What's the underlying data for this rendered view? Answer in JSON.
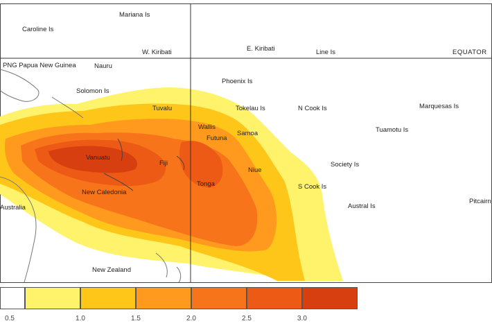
{
  "map": {
    "labels": {
      "mariana": "Mariana Is",
      "caroline": "Caroline Is",
      "w_kiribati": "W. Kiribati",
      "e_kiribati": "E. Kiribati",
      "line": "Line Is",
      "equator": "EQUATOR",
      "png": "PNG Papua New Guinea",
      "nauru": "Nauru",
      "solomon": "Solomon Is",
      "tuvalu": "Tuvalu",
      "tokelau": "Tokelau Is",
      "n_cook": "N Cook Is",
      "marquesas": "Marquesas Is",
      "tuamotu": "Tuamotu Is",
      "wallis": "Wallis",
      "futuna": "Futuna",
      "samoa": "Samoa",
      "vanuatu": "Vanuatu",
      "fiji": "Fiji",
      "new_caledonia": "New Caledonia",
      "niue": "Niue",
      "tonga": "Tonga",
      "society": "Society Is",
      "s_cook": "S Cook Is",
      "austral": "Austral Is",
      "pitcairn": "Pitcairn",
      "australia": "Australia",
      "new_zealand": "New Zealand",
      "phoenix": "Phoenix Is"
    }
  },
  "legend": {
    "levels": [
      {
        "from": 0.0,
        "color": "#ffffff"
      },
      {
        "from": 0.5,
        "color": "#fff36b"
      },
      {
        "from": 1.0,
        "color": "#ffc61a"
      },
      {
        "from": 1.5,
        "color": "#ff9a1f"
      },
      {
        "from": 2.0,
        "color": "#f7741a"
      },
      {
        "from": 2.5,
        "color": "#ec5a15"
      },
      {
        "from": 3.0,
        "color": "#d73f10"
      }
    ],
    "tick_labels": [
      "0.5",
      "1.0",
      "1.5",
      "2.0",
      "2.5",
      "3.0"
    ]
  },
  "colors": {
    "yellow": "#fff36b",
    "gold": "#ffc61a",
    "orange": "#ff9a1f",
    "dark_orange": "#f7741a",
    "red_orange": "#ec5a15",
    "red": "#d73f10"
  }
}
